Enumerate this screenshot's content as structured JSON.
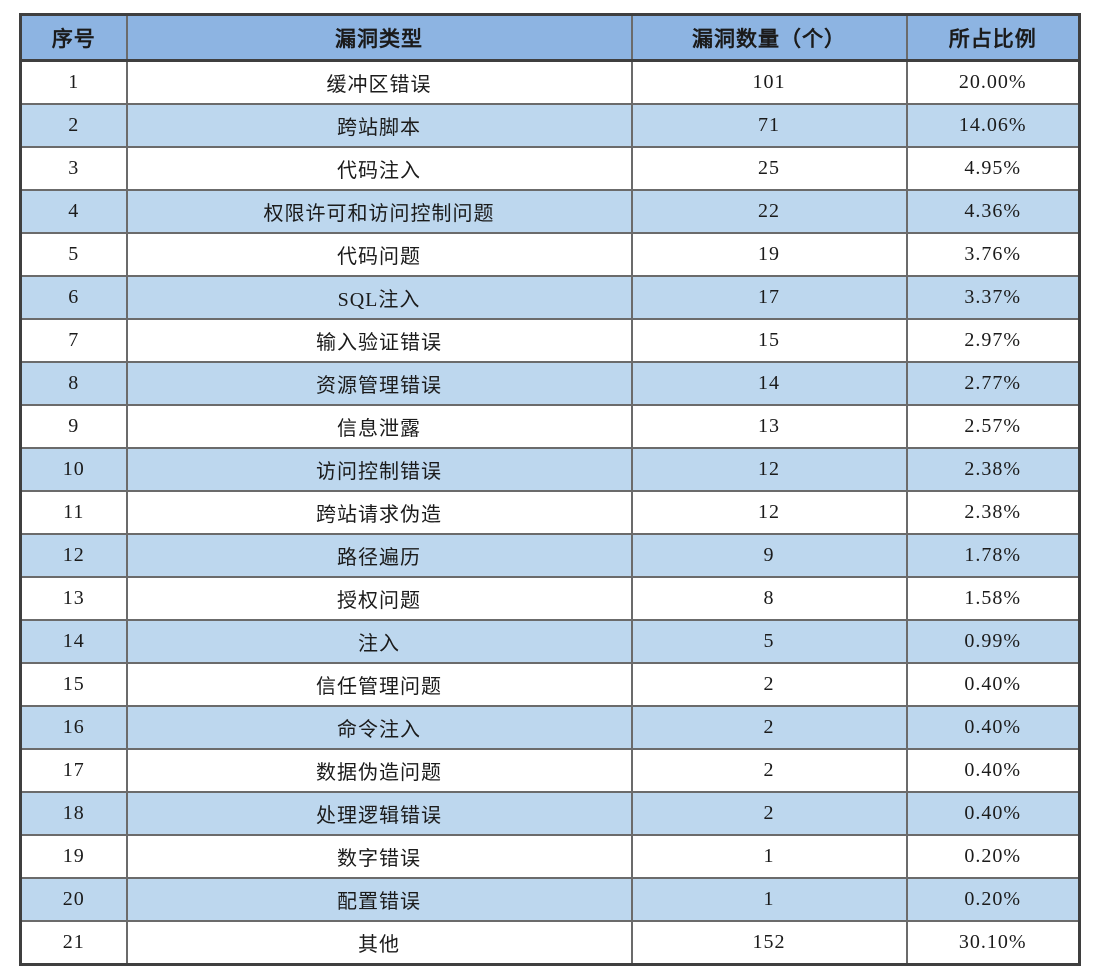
{
  "colors": {
    "header_bg": "#8DB4E2",
    "alt_row_bg": "#BDD7EE",
    "row_bg": "#FFFFFF",
    "border_inner": "#6B6B6B",
    "border_outer": "#3F3F3F",
    "text": "#1B1B1B"
  },
  "chart_data": {
    "type": "table",
    "title": "",
    "columns": [
      "序号",
      "漏洞类型",
      "漏洞数量（个）",
      "所占比例"
    ],
    "rows": [
      [
        "1",
        "缓冲区错误",
        "101",
        "20.00%"
      ],
      [
        "2",
        "跨站脚本",
        "71",
        "14.06%"
      ],
      [
        "3",
        "代码注入",
        "25",
        "4.95%"
      ],
      [
        "4",
        "权限许可和访问控制问题",
        "22",
        "4.36%"
      ],
      [
        "5",
        "代码问题",
        "19",
        "3.76%"
      ],
      [
        "6",
        "SQL注入",
        "17",
        "3.37%"
      ],
      [
        "7",
        "输入验证错误",
        "15",
        "2.97%"
      ],
      [
        "8",
        "资源管理错误",
        "14",
        "2.77%"
      ],
      [
        "9",
        "信息泄露",
        "13",
        "2.57%"
      ],
      [
        "10",
        "访问控制错误",
        "12",
        "2.38%"
      ],
      [
        "11",
        "跨站请求伪造",
        "12",
        "2.38%"
      ],
      [
        "12",
        "路径遍历",
        "9",
        "1.78%"
      ],
      [
        "13",
        "授权问题",
        "8",
        "1.58%"
      ],
      [
        "14",
        "注入",
        "5",
        "0.99%"
      ],
      [
        "15",
        "信任管理问题",
        "2",
        "0.40%"
      ],
      [
        "16",
        "命令注入",
        "2",
        "0.40%"
      ],
      [
        "17",
        "数据伪造问题",
        "2",
        "0.40%"
      ],
      [
        "18",
        "处理逻辑错误",
        "2",
        "0.40%"
      ],
      [
        "19",
        "数字错误",
        "1",
        "0.20%"
      ],
      [
        "20",
        "配置错误",
        "1",
        "0.20%"
      ],
      [
        "21",
        "其他",
        "152",
        "30.10%"
      ]
    ],
    "layout": {
      "grid": true,
      "shading": "even-numbered rows light blue, header medium blue",
      "alignment": "all cells centered"
    }
  }
}
